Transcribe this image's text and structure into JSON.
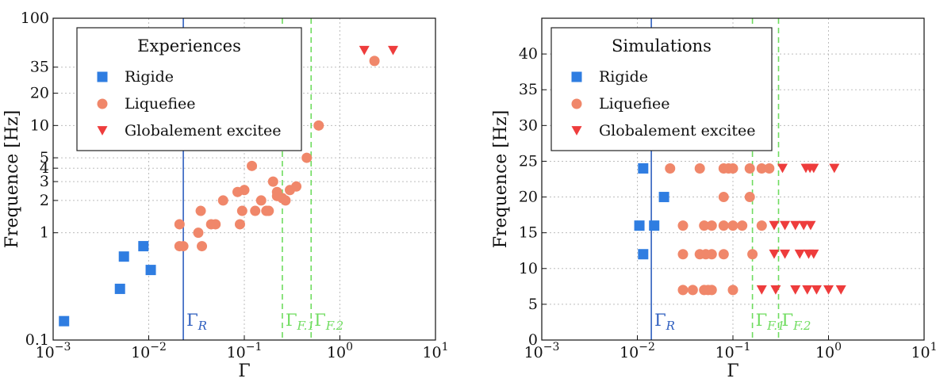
{
  "colors": {
    "rigide": "#2f7de1",
    "liquefiee": "#f0876a",
    "excitee": "#ee3c3c",
    "gamma_r_line": "#2f5fbf",
    "gamma_f_line": "#6fdc5f",
    "grid": "#bdbdbd"
  },
  "chart_data": [
    {
      "type": "scatter",
      "xscale": "log",
      "yscale": "log",
      "xlim": [
        0.001,
        10
      ],
      "ylim": [
        0.1,
        100
      ],
      "xlabel": "Γ",
      "ylabel": "Frequence [Hz]",
      "grid": true,
      "legend_placement": "top-left",
      "xticks": [
        {
          "value": 0.001,
          "base": "10",
          "exp": "−3"
        },
        {
          "value": 0.01,
          "base": "10",
          "exp": "−2"
        },
        {
          "value": 0.1,
          "base": "10",
          "exp": "−1"
        },
        {
          "value": 1,
          "base": "10",
          "exp": "0"
        },
        {
          "value": 10,
          "base": "10",
          "exp": "1"
        }
      ],
      "yticks": [
        {
          "value": 0.1,
          "label": "0.1"
        },
        {
          "value": 1,
          "label": "1"
        },
        {
          "value": 2,
          "label": "2"
        },
        {
          "value": 3,
          "label": "3"
        },
        {
          "value": 4,
          "label": "4"
        },
        {
          "value": 5,
          "label": "5"
        },
        {
          "value": 10,
          "label": "10"
        },
        {
          "value": 20,
          "label": "20"
        },
        {
          "value": 35,
          "label": "35"
        },
        {
          "value": 100,
          "label": "100"
        }
      ],
      "legend_title": "Experiences",
      "series": [
        {
          "name": "Rigide",
          "marker": "square",
          "color_key": "rigide",
          "points": [
            [
              0.0013,
              0.15
            ],
            [
              0.005,
              0.3
            ],
            [
              0.0055,
              0.6
            ],
            [
              0.0088,
              0.75
            ],
            [
              0.0105,
              0.45
            ]
          ]
        },
        {
          "name": "Liquefiee",
          "marker": "circle",
          "color_key": "liquefiee",
          "points": [
            [
              0.021,
              0.75
            ],
            [
              0.021,
              1.2
            ],
            [
              0.023,
              0.75
            ],
            [
              0.033,
              1.0
            ],
            [
              0.035,
              1.6
            ],
            [
              0.036,
              0.75
            ],
            [
              0.045,
              1.2
            ],
            [
              0.05,
              1.2
            ],
            [
              0.06,
              2.0
            ],
            [
              0.085,
              2.4
            ],
            [
              0.09,
              1.2
            ],
            [
              0.095,
              1.6
            ],
            [
              0.1,
              2.5
            ],
            [
              0.12,
              4.2
            ],
            [
              0.13,
              1.6
            ],
            [
              0.15,
              2.0
            ],
            [
              0.17,
              1.6
            ],
            [
              0.18,
              1.6
            ],
            [
              0.2,
              3.0
            ],
            [
              0.22,
              2.2
            ],
            [
              0.22,
              2.4
            ],
            [
              0.25,
              2.1
            ],
            [
              0.27,
              2.0
            ],
            [
              0.3,
              2.5
            ],
            [
              0.35,
              2.7
            ],
            [
              0.45,
              5.0
            ],
            [
              0.6,
              10.0
            ],
            [
              2.3,
              40.0
            ]
          ]
        },
        {
          "name": "Globalement excitee",
          "marker": "triangle-down",
          "color_key": "excitee",
          "points": [
            [
              1.8,
              50.0
            ],
            [
              3.6,
              50.0
            ]
          ]
        }
      ],
      "vlines": [
        {
          "x": 0.023,
          "style": "solid",
          "color_key": "gamma_r_line",
          "label_main": "Γ",
          "label_sub": "R"
        },
        {
          "x": 0.25,
          "style": "dashed",
          "color_key": "gamma_f_line",
          "label_main": "Γ",
          "label_sub": "F.1"
        },
        {
          "x": 0.5,
          "style": "dashed",
          "color_key": "gamma_f_line",
          "label_main": "Γ",
          "label_sub": "F.2"
        }
      ]
    },
    {
      "type": "scatter",
      "xscale": "log",
      "yscale": "linear",
      "xlim": [
        0.001,
        10
      ],
      "ylim": [
        0,
        45
      ],
      "xlabel": "Γ",
      "ylabel": "Frequence [Hz]",
      "grid": true,
      "legend_placement": "top-left",
      "xticks": [
        {
          "value": 0.001,
          "base": "10",
          "exp": "−3"
        },
        {
          "value": 0.01,
          "base": "10",
          "exp": "−2"
        },
        {
          "value": 0.1,
          "base": "10",
          "exp": "−1"
        },
        {
          "value": 1,
          "base": "10",
          "exp": "0"
        },
        {
          "value": 10,
          "base": "10",
          "exp": "1"
        }
      ],
      "yticks": [
        {
          "value": 0,
          "label": "0"
        },
        {
          "value": 5,
          "label": "5"
        },
        {
          "value": 10,
          "label": "10"
        },
        {
          "value": 15,
          "label": "15"
        },
        {
          "value": 20,
          "label": "20"
        },
        {
          "value": 25,
          "label": "25"
        },
        {
          "value": 30,
          "label": "30"
        },
        {
          "value": 35,
          "label": "35"
        },
        {
          "value": 40,
          "label": "40"
        }
      ],
      "legend_title": "Simulations",
      "series": [
        {
          "name": "Rigide",
          "marker": "square",
          "color_key": "rigide",
          "points": [
            [
              0.0105,
              16
            ],
            [
              0.0115,
              24
            ],
            [
              0.0115,
              12
            ],
            [
              0.015,
              16
            ],
            [
              0.019,
              20
            ]
          ]
        },
        {
          "name": "Liquefiee",
          "marker": "circle",
          "color_key": "liquefiee",
          "points": [
            [
              0.022,
              24
            ],
            [
              0.045,
              24
            ],
            [
              0.08,
              24
            ],
            [
              0.09,
              24
            ],
            [
              0.1,
              24
            ],
            [
              0.15,
              24
            ],
            [
              0.2,
              24
            ],
            [
              0.24,
              24
            ],
            [
              0.08,
              20
            ],
            [
              0.15,
              20
            ],
            [
              0.03,
              16
            ],
            [
              0.05,
              16
            ],
            [
              0.06,
              16
            ],
            [
              0.08,
              16
            ],
            [
              0.1,
              16
            ],
            [
              0.125,
              16
            ],
            [
              0.2,
              16
            ],
            [
              0.03,
              12
            ],
            [
              0.045,
              12
            ],
            [
              0.052,
              12
            ],
            [
              0.06,
              12
            ],
            [
              0.08,
              12
            ],
            [
              0.16,
              12
            ],
            [
              0.03,
              7
            ],
            [
              0.038,
              7
            ],
            [
              0.05,
              7
            ],
            [
              0.055,
              7
            ],
            [
              0.06,
              7
            ],
            [
              0.1,
              7
            ]
          ]
        },
        {
          "name": "Globalement excitee",
          "marker": "triangle-down",
          "color_key": "excitee",
          "points": [
            [
              0.33,
              24
            ],
            [
              0.58,
              24
            ],
            [
              0.64,
              24
            ],
            [
              0.7,
              24
            ],
            [
              1.15,
              24
            ],
            [
              0.27,
              16
            ],
            [
              0.35,
              16
            ],
            [
              0.45,
              16
            ],
            [
              0.55,
              16
            ],
            [
              0.65,
              16
            ],
            [
              0.27,
              12
            ],
            [
              0.35,
              12
            ],
            [
              0.5,
              12
            ],
            [
              0.62,
              12
            ],
            [
              0.7,
              12
            ],
            [
              0.2,
              7
            ],
            [
              0.28,
              7
            ],
            [
              0.45,
              7
            ],
            [
              0.6,
              7
            ],
            [
              0.75,
              7
            ],
            [
              1.0,
              7
            ],
            [
              1.35,
              7
            ]
          ]
        }
      ],
      "vlines": [
        {
          "x": 0.014,
          "style": "solid",
          "color_key": "gamma_r_line",
          "label_main": "Γ",
          "label_sub": "R"
        },
        {
          "x": 0.16,
          "style": "dashed",
          "color_key": "gamma_f_line",
          "label_main": "Γ",
          "label_sub": "F.1"
        },
        {
          "x": 0.3,
          "style": "dashed",
          "color_key": "gamma_f_line",
          "label_main": "Γ",
          "label_sub": "F.2"
        }
      ]
    }
  ]
}
